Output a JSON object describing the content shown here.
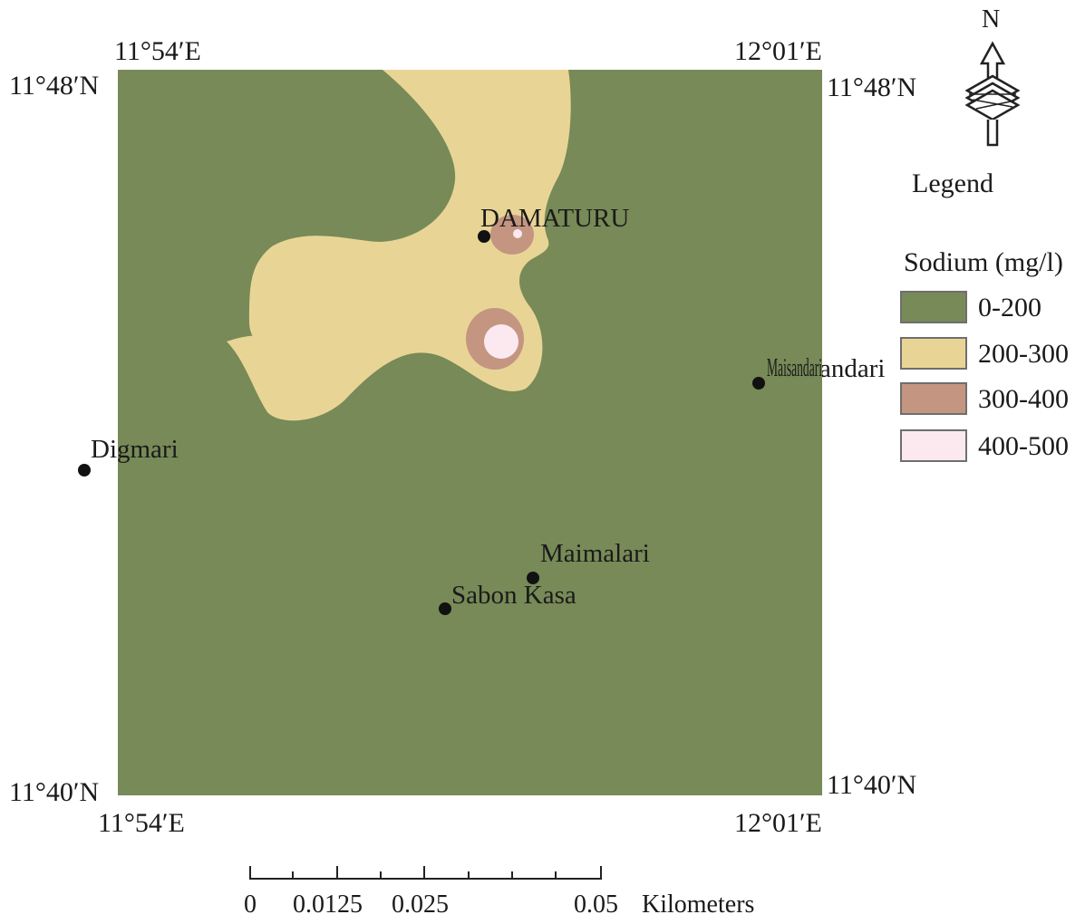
{
  "coordinates": {
    "top_left_lon": "11°54′E",
    "top_right_lon": "12°01′E",
    "top_left_lat": "11°48′N",
    "top_right_lat": "11°48′N",
    "bottom_left_lat": "11°40′N",
    "bottom_right_lat": "11°40′N",
    "bottom_left_lon": "11°54′E",
    "bottom_right_lon": "12°01′E"
  },
  "places": {
    "damaturu": "DAMATURU",
    "maisandari": "Maisandari",
    "digmari": "Digmari",
    "maimalari": "Maimalari",
    "sabon_kasa": "Sabon Kasa"
  },
  "north_arrow": {
    "label": "N"
  },
  "legend": {
    "title": "Legend",
    "subtitle": "Sodium (mg/l)",
    "items": [
      {
        "label": "0-200",
        "color": "#778a57"
      },
      {
        "label": "200-300",
        "color": "#e8d595"
      },
      {
        "label": "300-400",
        "color": "#c49580"
      },
      {
        "label": "400-500",
        "color": "#fbe9ef"
      }
    ]
  },
  "scale": {
    "ticks": [
      "0",
      "0.0125",
      "0.025",
      "0.05"
    ],
    "unit": "Kilometers"
  }
}
